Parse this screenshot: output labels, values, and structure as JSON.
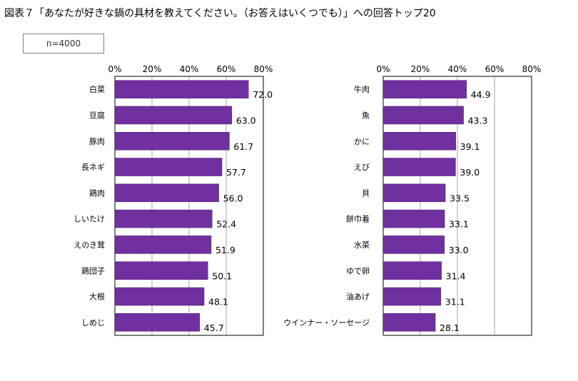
{
  "title": "図表７「あなたが好きな鍋の具材を教えてください。（お答えはいくつでも）」への回答トップ20",
  "n_label": "n=4000",
  "colors": {
    "bar": "#7030a0",
    "bar_edge": "#4b1b72",
    "grid": "#a6a6a6",
    "axis": "#000000"
  },
  "chart_data": [
    {
      "type": "bar",
      "orientation": "horizontal",
      "xlim": [
        0,
        80
      ],
      "ticks": [
        "0%",
        "20%",
        "40%",
        "60%",
        "80%"
      ],
      "tick_values": [
        0,
        20,
        40,
        60,
        80
      ],
      "grid": true,
      "categories": [
        "白菜",
        "豆腐",
        "豚肉",
        "長ネギ",
        "鶏肉",
        "しいたけ",
        "えのき茸",
        "鶏団子",
        "大根",
        "しめじ"
      ],
      "values": [
        72.0,
        63.0,
        61.7,
        57.7,
        56.0,
        52.4,
        51.9,
        50.1,
        48.1,
        45.7
      ],
      "value_labels": [
        "72.0",
        "63.0",
        "61.7",
        "57.7",
        "56.0",
        "52.4",
        "51.9",
        "50.1",
        "48.1",
        "45.7"
      ]
    },
    {
      "type": "bar",
      "orientation": "horizontal",
      "xlim": [
        0,
        80
      ],
      "ticks": [
        "0%",
        "20%",
        "40%",
        "60%",
        "80%"
      ],
      "tick_values": [
        0,
        20,
        40,
        60,
        80
      ],
      "grid": true,
      "categories": [
        "牛肉",
        "魚",
        "かに",
        "えび",
        "貝",
        "餅巾着",
        "水菜",
        "ゆで卵",
        "油あげ",
        "ウインナー・ソーセージ"
      ],
      "values": [
        44.9,
        43.3,
        39.1,
        39.0,
        33.5,
        33.1,
        33.0,
        31.4,
        31.1,
        28.1
      ],
      "value_labels": [
        "44.9",
        "43.3",
        "39.1",
        "39.0",
        "33.5",
        "33.1",
        "33.0",
        "31.4",
        "31.1",
        "28.1"
      ]
    }
  ]
}
